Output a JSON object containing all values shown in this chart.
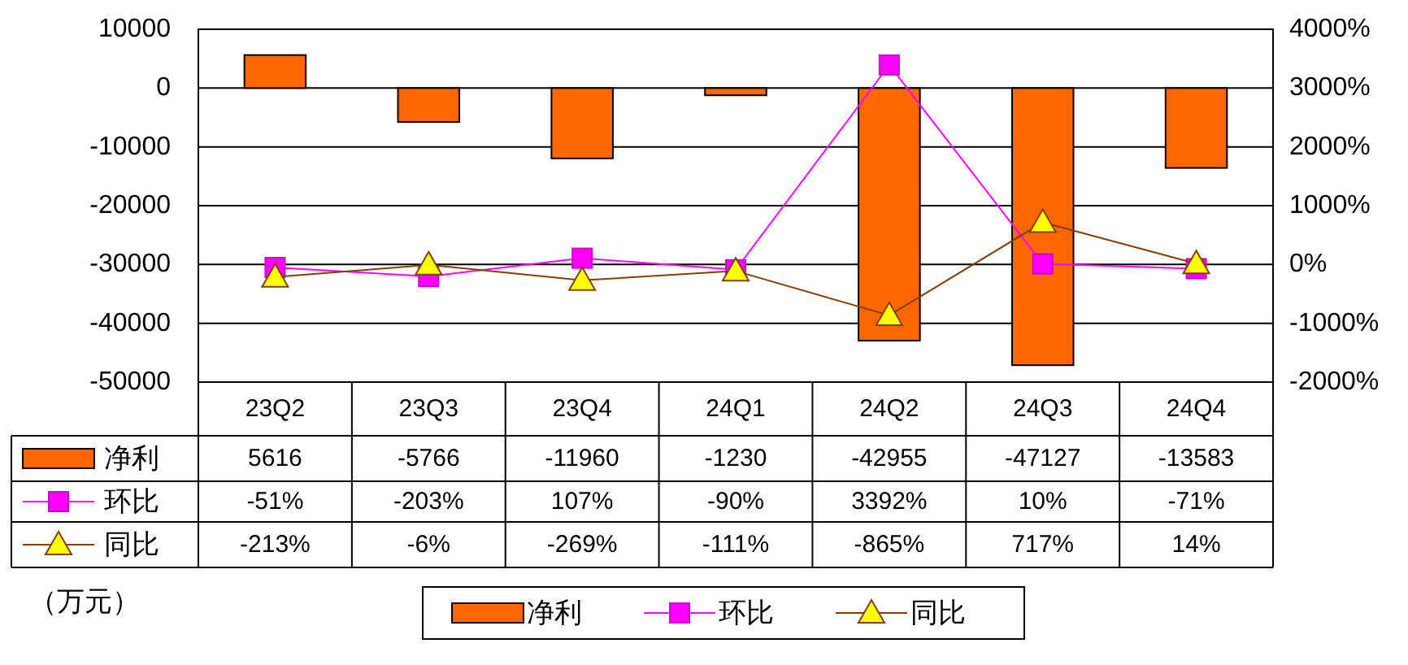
{
  "chart_data": {
    "type": "bar",
    "categories": [
      "23Q2",
      "23Q3",
      "23Q4",
      "24Q1",
      "24Q2",
      "24Q3",
      "24Q4"
    ],
    "series": [
      {
        "name": "净利",
        "color": "#ff6600",
        "values": [
          5616,
          -5766,
          -11960,
          -1230,
          -42955,
          -47127,
          -13583
        ],
        "value_labels": [
          "5616",
          "-5766",
          "-11960",
          "-1230",
          "-42955",
          "-47127",
          "-13583"
        ]
      },
      {
        "name": "环比",
        "type": "line",
        "axis": "y2",
        "marker": "square",
        "color": "#ff00ff",
        "values": [
          -51,
          -203,
          107,
          -90,
          3392,
          10,
          -71
        ],
        "value_labels": [
          "-51%",
          "-203%",
          "107%",
          "-90%",
          "3392%",
          "10%",
          "-71%"
        ]
      },
      {
        "name": "同比",
        "type": "line",
        "axis": "y2",
        "marker": "triangle",
        "color": "#804000",
        "values": [
          -213,
          -6,
          -269,
          -111,
          -865,
          717,
          14
        ],
        "value_labels": [
          "-213%",
          "-6%",
          "-269%",
          "-111%",
          "-865%",
          "717%",
          "14%"
        ]
      }
    ],
    "ylim": [
      -50000,
      10000
    ],
    "yticks": [
      -50000,
      -40000,
      -30000,
      -20000,
      -10000,
      0,
      10000
    ],
    "y2lim": [
      -2000,
      4000
    ],
    "y2ticks": [
      {
        "value": -2000,
        "label": "-2000%"
      },
      {
        "value": -1000,
        "label": "-1000%"
      },
      {
        "value": 0,
        "label": "0%"
      },
      {
        "value": 1000,
        "label": "1000%"
      },
      {
        "value": 2000,
        "label": "2000%"
      },
      {
        "value": 3000,
        "label": "3000%"
      },
      {
        "value": 4000,
        "label": "4000%"
      }
    ],
    "grid": "y",
    "legend": "bottom",
    "annotations": [
      "（万元）"
    ]
  }
}
